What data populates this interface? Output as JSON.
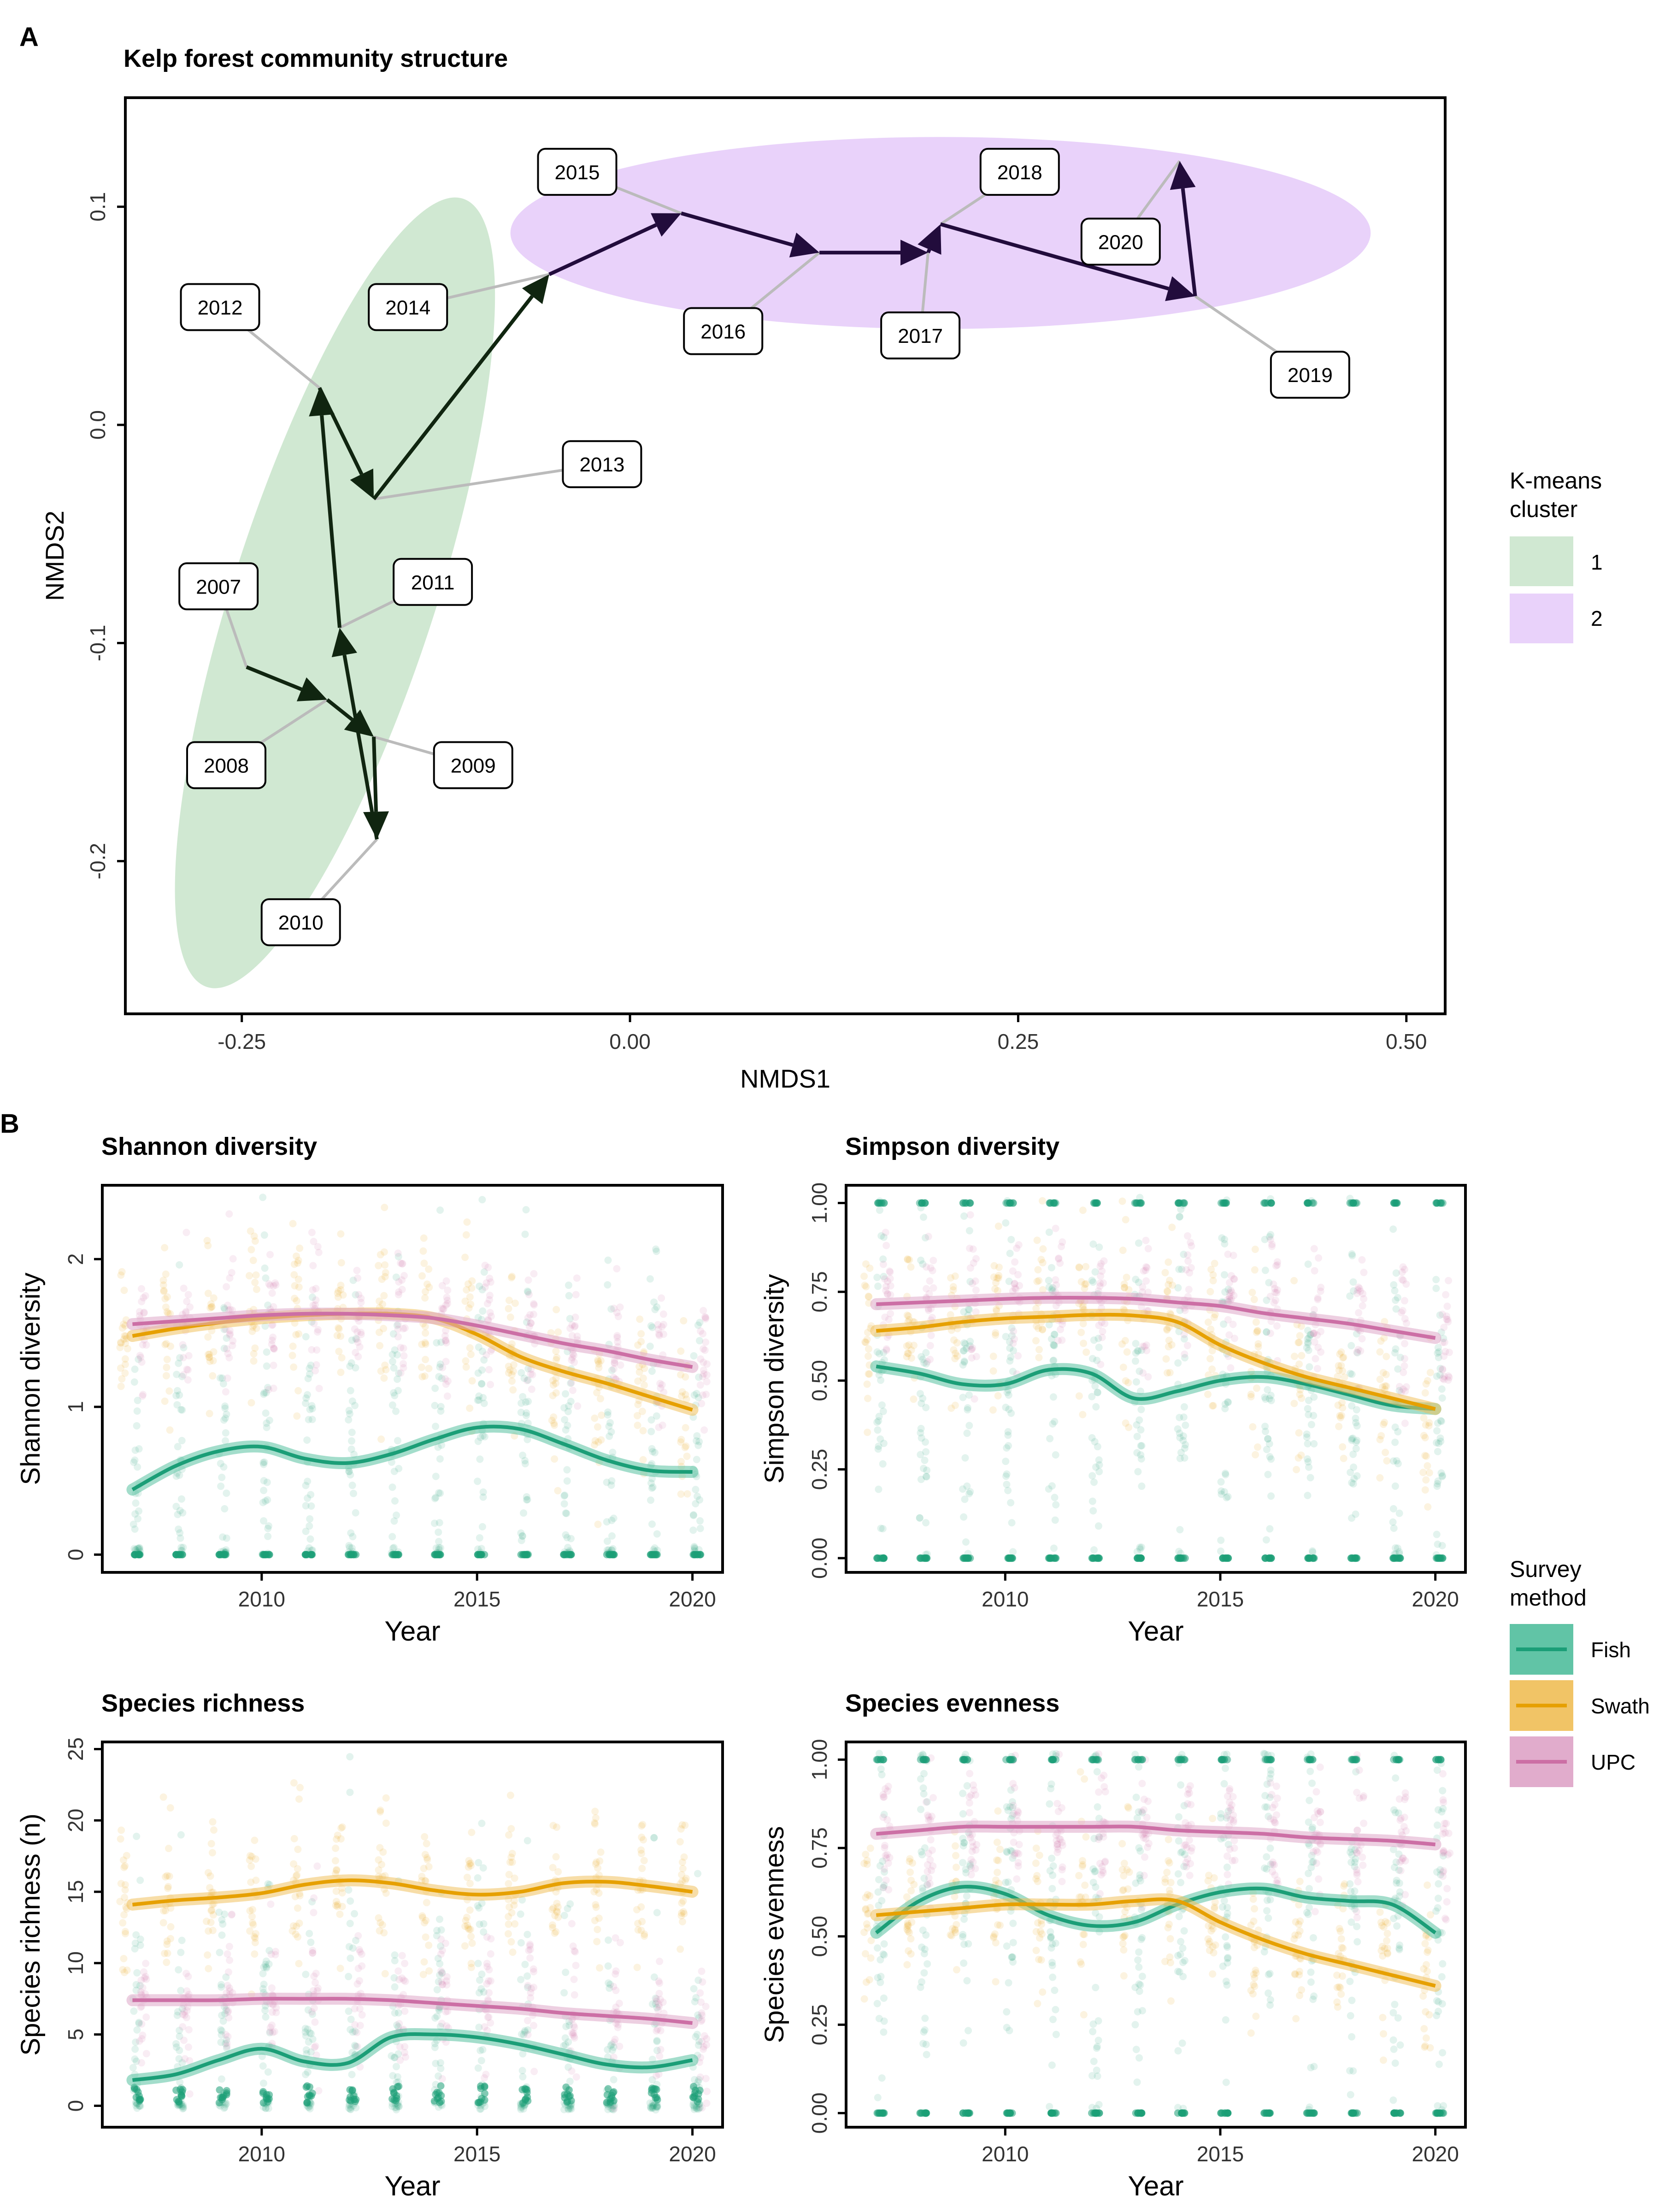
{
  "panel_labels": {
    "a": "A",
    "b": "B"
  },
  "colors": {
    "cluster_1": "#d0e8d2",
    "cluster_2": "#e9d2fa",
    "arrow_c1": "#102510",
    "arrow_c2": "#220c3c",
    "leader": "#bbbbbb",
    "fish": "#1b9e77",
    "swath": "#e6a000",
    "upc": "#cc6fa5",
    "fish_band": "#58c1a1",
    "swath_band": "#f0c15e",
    "upc_band": "#dfa8c9"
  },
  "chart_data": [
    {
      "type": "scatter",
      "title": "Kelp forest community structure",
      "xlabel": "NMDS1",
      "ylabel": "NMDS2",
      "xlim": [
        -0.325,
        0.525
      ],
      "ylim": [
        -0.27,
        0.15
      ],
      "xticks": [
        -0.25,
        0.0,
        0.25,
        0.5
      ],
      "xtick_labels": [
        "-0.25",
        "0.00",
        "0.25",
        "0.50"
      ],
      "yticks": [
        -0.2,
        -0.1,
        0.0,
        0.1
      ],
      "ytick_labels": [
        "-0.2",
        "-0.1",
        "0.0",
        "0.1"
      ],
      "grid": false,
      "points": [
        {
          "year": "2007",
          "x": -0.247,
          "y": -0.111,
          "cluster": 1,
          "label_x": -0.265,
          "label_y": -0.074
        },
        {
          "year": "2008",
          "x": -0.195,
          "y": -0.126,
          "cluster": 1,
          "label_x": -0.26,
          "label_y": -0.156
        },
        {
          "year": "2009",
          "x": -0.165,
          "y": -0.143,
          "cluster": 1,
          "label_x": -0.101,
          "label_y": -0.156
        },
        {
          "year": "2010",
          "x": -0.163,
          "y": -0.19,
          "cluster": 1,
          "label_x": -0.212,
          "label_y": -0.228
        },
        {
          "year": "2011",
          "x": -0.187,
          "y": -0.093,
          "cluster": 1,
          "label_x": -0.127,
          "label_y": -0.072
        },
        {
          "year": "2012",
          "x": -0.2,
          "y": 0.017,
          "cluster": 1,
          "label_x": -0.264,
          "label_y": 0.054
        },
        {
          "year": "2013",
          "x": -0.165,
          "y": -0.034,
          "cluster": 1,
          "label_x": -0.018,
          "label_y": -0.018
        },
        {
          "year": "2014",
          "x": -0.052,
          "y": 0.069,
          "cluster": 1,
          "label_x": -0.143,
          "label_y": 0.054
        },
        {
          "year": "2015",
          "x": 0.033,
          "y": 0.097,
          "cluster": 2,
          "label_x": -0.034,
          "label_y": 0.116
        },
        {
          "year": "2016",
          "x": 0.122,
          "y": 0.079,
          "cluster": 2,
          "label_x": 0.06,
          "label_y": 0.043
        },
        {
          "year": "2017",
          "x": 0.192,
          "y": 0.079,
          "cluster": 2,
          "label_x": 0.187,
          "label_y": 0.041
        },
        {
          "year": "2018",
          "x": 0.2,
          "y": 0.092,
          "cluster": 2,
          "label_x": 0.251,
          "label_y": 0.116
        },
        {
          "year": "2019",
          "x": 0.364,
          "y": 0.059,
          "cluster": 2,
          "label_x": 0.438,
          "label_y": 0.023
        },
        {
          "year": "2020",
          "x": 0.354,
          "y": 0.121,
          "cluster": 2,
          "label_x": 0.316,
          "label_y": 0.084
        }
      ],
      "ellipses": [
        {
          "cluster": "1",
          "cx": -0.19,
          "cy": -0.077,
          "rx": 0.065,
          "ry": 0.19,
          "angle": 18
        },
        {
          "cluster": "2",
          "cx": 0.2,
          "cy": 0.088,
          "rx": 0.277,
          "ry": 0.044,
          "angle": 0
        }
      ],
      "legend": {
        "title": "K-means\ncluster",
        "items": [
          "1",
          "2"
        ],
        "position": "right"
      }
    },
    {
      "type": "line",
      "title": "Shannon diversity",
      "xlabel": "Year",
      "ylabel": "Shannon diversity",
      "xlim": [
        2006.3,
        2020.7
      ],
      "ylim": [
        -0.12,
        2.5
      ],
      "xticks": [
        2010,
        2015,
        2020
      ],
      "yticks": [
        0,
        1,
        2
      ],
      "x": [
        2007,
        2008,
        2009,
        2010,
        2011,
        2012,
        2013,
        2014,
        2015,
        2016,
        2017,
        2018,
        2019,
        2020
      ],
      "series": [
        {
          "name": "Fish",
          "values": [
            0.44,
            0.6,
            0.7,
            0.73,
            0.65,
            0.62,
            0.68,
            0.78,
            0.86,
            0.85,
            0.75,
            0.64,
            0.57,
            0.56
          ]
        },
        {
          "name": "Swath",
          "values": [
            1.48,
            1.53,
            1.57,
            1.6,
            1.62,
            1.63,
            1.63,
            1.6,
            1.49,
            1.34,
            1.24,
            1.16,
            1.07,
            0.98
          ]
        },
        {
          "name": "UPC",
          "values": [
            1.56,
            1.58,
            1.6,
            1.62,
            1.63,
            1.63,
            1.62,
            1.6,
            1.55,
            1.49,
            1.43,
            1.38,
            1.32,
            1.27
          ]
        }
      ],
      "raw_data": "jittered individual survey points per year (semi-transparent)"
    },
    {
      "type": "line",
      "title": "Simpson diversity",
      "xlabel": "Year",
      "ylabel": "Simpson diversity",
      "xlim": [
        2006.3,
        2020.7
      ],
      "ylim": [
        -0.04,
        1.05
      ],
      "xticks": [
        2010,
        2015,
        2020
      ],
      "yticks": [
        0.0,
        0.25,
        0.5,
        0.75,
        1.0
      ],
      "ytick_labels": [
        "0.00",
        "0.25",
        "0.50",
        "0.75",
        "1.00"
      ],
      "x": [
        2007,
        2008,
        2009,
        2010,
        2011,
        2012,
        2013,
        2014,
        2015,
        2016,
        2017,
        2018,
        2019,
        2020
      ],
      "series": [
        {
          "name": "Fish",
          "values": [
            0.54,
            0.52,
            0.49,
            0.49,
            0.53,
            0.52,
            0.45,
            0.47,
            0.5,
            0.51,
            0.49,
            0.46,
            0.43,
            0.42
          ]
        },
        {
          "name": "Swath",
          "values": [
            0.64,
            0.65,
            0.665,
            0.675,
            0.68,
            0.685,
            0.683,
            0.665,
            0.6,
            0.55,
            0.51,
            0.48,
            0.45,
            0.42
          ]
        },
        {
          "name": "UPC",
          "values": [
            0.715,
            0.72,
            0.725,
            0.73,
            0.733,
            0.733,
            0.73,
            0.72,
            0.71,
            0.69,
            0.675,
            0.66,
            0.64,
            0.62
          ]
        }
      ],
      "raw_data": "jittered individual survey points per year (semi-transparent)"
    },
    {
      "type": "line",
      "title": "Species richness",
      "xlabel": "Year",
      "ylabel": "Species richness (n)",
      "xlim": [
        2006.3,
        2020.7
      ],
      "ylim": [
        -1.5,
        25.5
      ],
      "xticks": [
        2010,
        2015,
        2020
      ],
      "yticks": [
        0,
        5,
        10,
        15,
        20,
        25
      ],
      "x": [
        2007,
        2008,
        2009,
        2010,
        2011,
        2012,
        2013,
        2014,
        2015,
        2016,
        2017,
        2018,
        2019,
        2020
      ],
      "series": [
        {
          "name": "Fish",
          "values": [
            1.8,
            2.2,
            3.2,
            4.0,
            3.1,
            3.0,
            4.8,
            5.0,
            4.8,
            4.3,
            3.6,
            2.9,
            2.7,
            3.2
          ]
        },
        {
          "name": "Swath",
          "values": [
            14.1,
            14.4,
            14.6,
            14.9,
            15.5,
            15.8,
            15.6,
            15.1,
            14.8,
            15.0,
            15.6,
            15.7,
            15.4,
            15.0
          ]
        },
        {
          "name": "UPC",
          "values": [
            7.4,
            7.4,
            7.4,
            7.5,
            7.5,
            7.5,
            7.4,
            7.2,
            7.0,
            6.8,
            6.5,
            6.3,
            6.1,
            5.8
          ]
        }
      ],
      "raw_data": "jittered individual survey points per year (semi-transparent)"
    },
    {
      "type": "line",
      "title": "Species evenness",
      "xlabel": "Year",
      "ylabel": "Species evenness",
      "xlim": [
        2006.3,
        2020.7
      ],
      "ylim": [
        -0.04,
        1.05
      ],
      "xticks": [
        2010,
        2015,
        2020
      ],
      "yticks": [
        0.0,
        0.25,
        0.5,
        0.75,
        1.0
      ],
      "ytick_labels": [
        "0.00",
        "0.25",
        "0.50",
        "0.75",
        "1.00"
      ],
      "x": [
        2007,
        2008,
        2009,
        2010,
        2011,
        2012,
        2013,
        2014,
        2015,
        2016,
        2017,
        2018,
        2019,
        2020
      ],
      "series": [
        {
          "name": "Fish",
          "values": [
            0.51,
            0.6,
            0.64,
            0.62,
            0.56,
            0.53,
            0.54,
            0.59,
            0.625,
            0.635,
            0.61,
            0.6,
            0.59,
            0.51
          ]
        },
        {
          "name": "Swath",
          "values": [
            0.56,
            0.57,
            0.58,
            0.59,
            0.59,
            0.59,
            0.6,
            0.6,
            0.54,
            0.49,
            0.45,
            0.42,
            0.39,
            0.36
          ]
        },
        {
          "name": "UPC",
          "values": [
            0.79,
            0.8,
            0.81,
            0.81,
            0.81,
            0.81,
            0.81,
            0.8,
            0.795,
            0.79,
            0.78,
            0.775,
            0.77,
            0.76
          ]
        }
      ],
      "raw_data": "jittered individual survey points per year (semi-transparent)"
    }
  ],
  "legend_b": {
    "title": "Survey\nmethod",
    "items": [
      "Fish",
      "Swath",
      "UPC"
    ],
    "position": "right"
  }
}
